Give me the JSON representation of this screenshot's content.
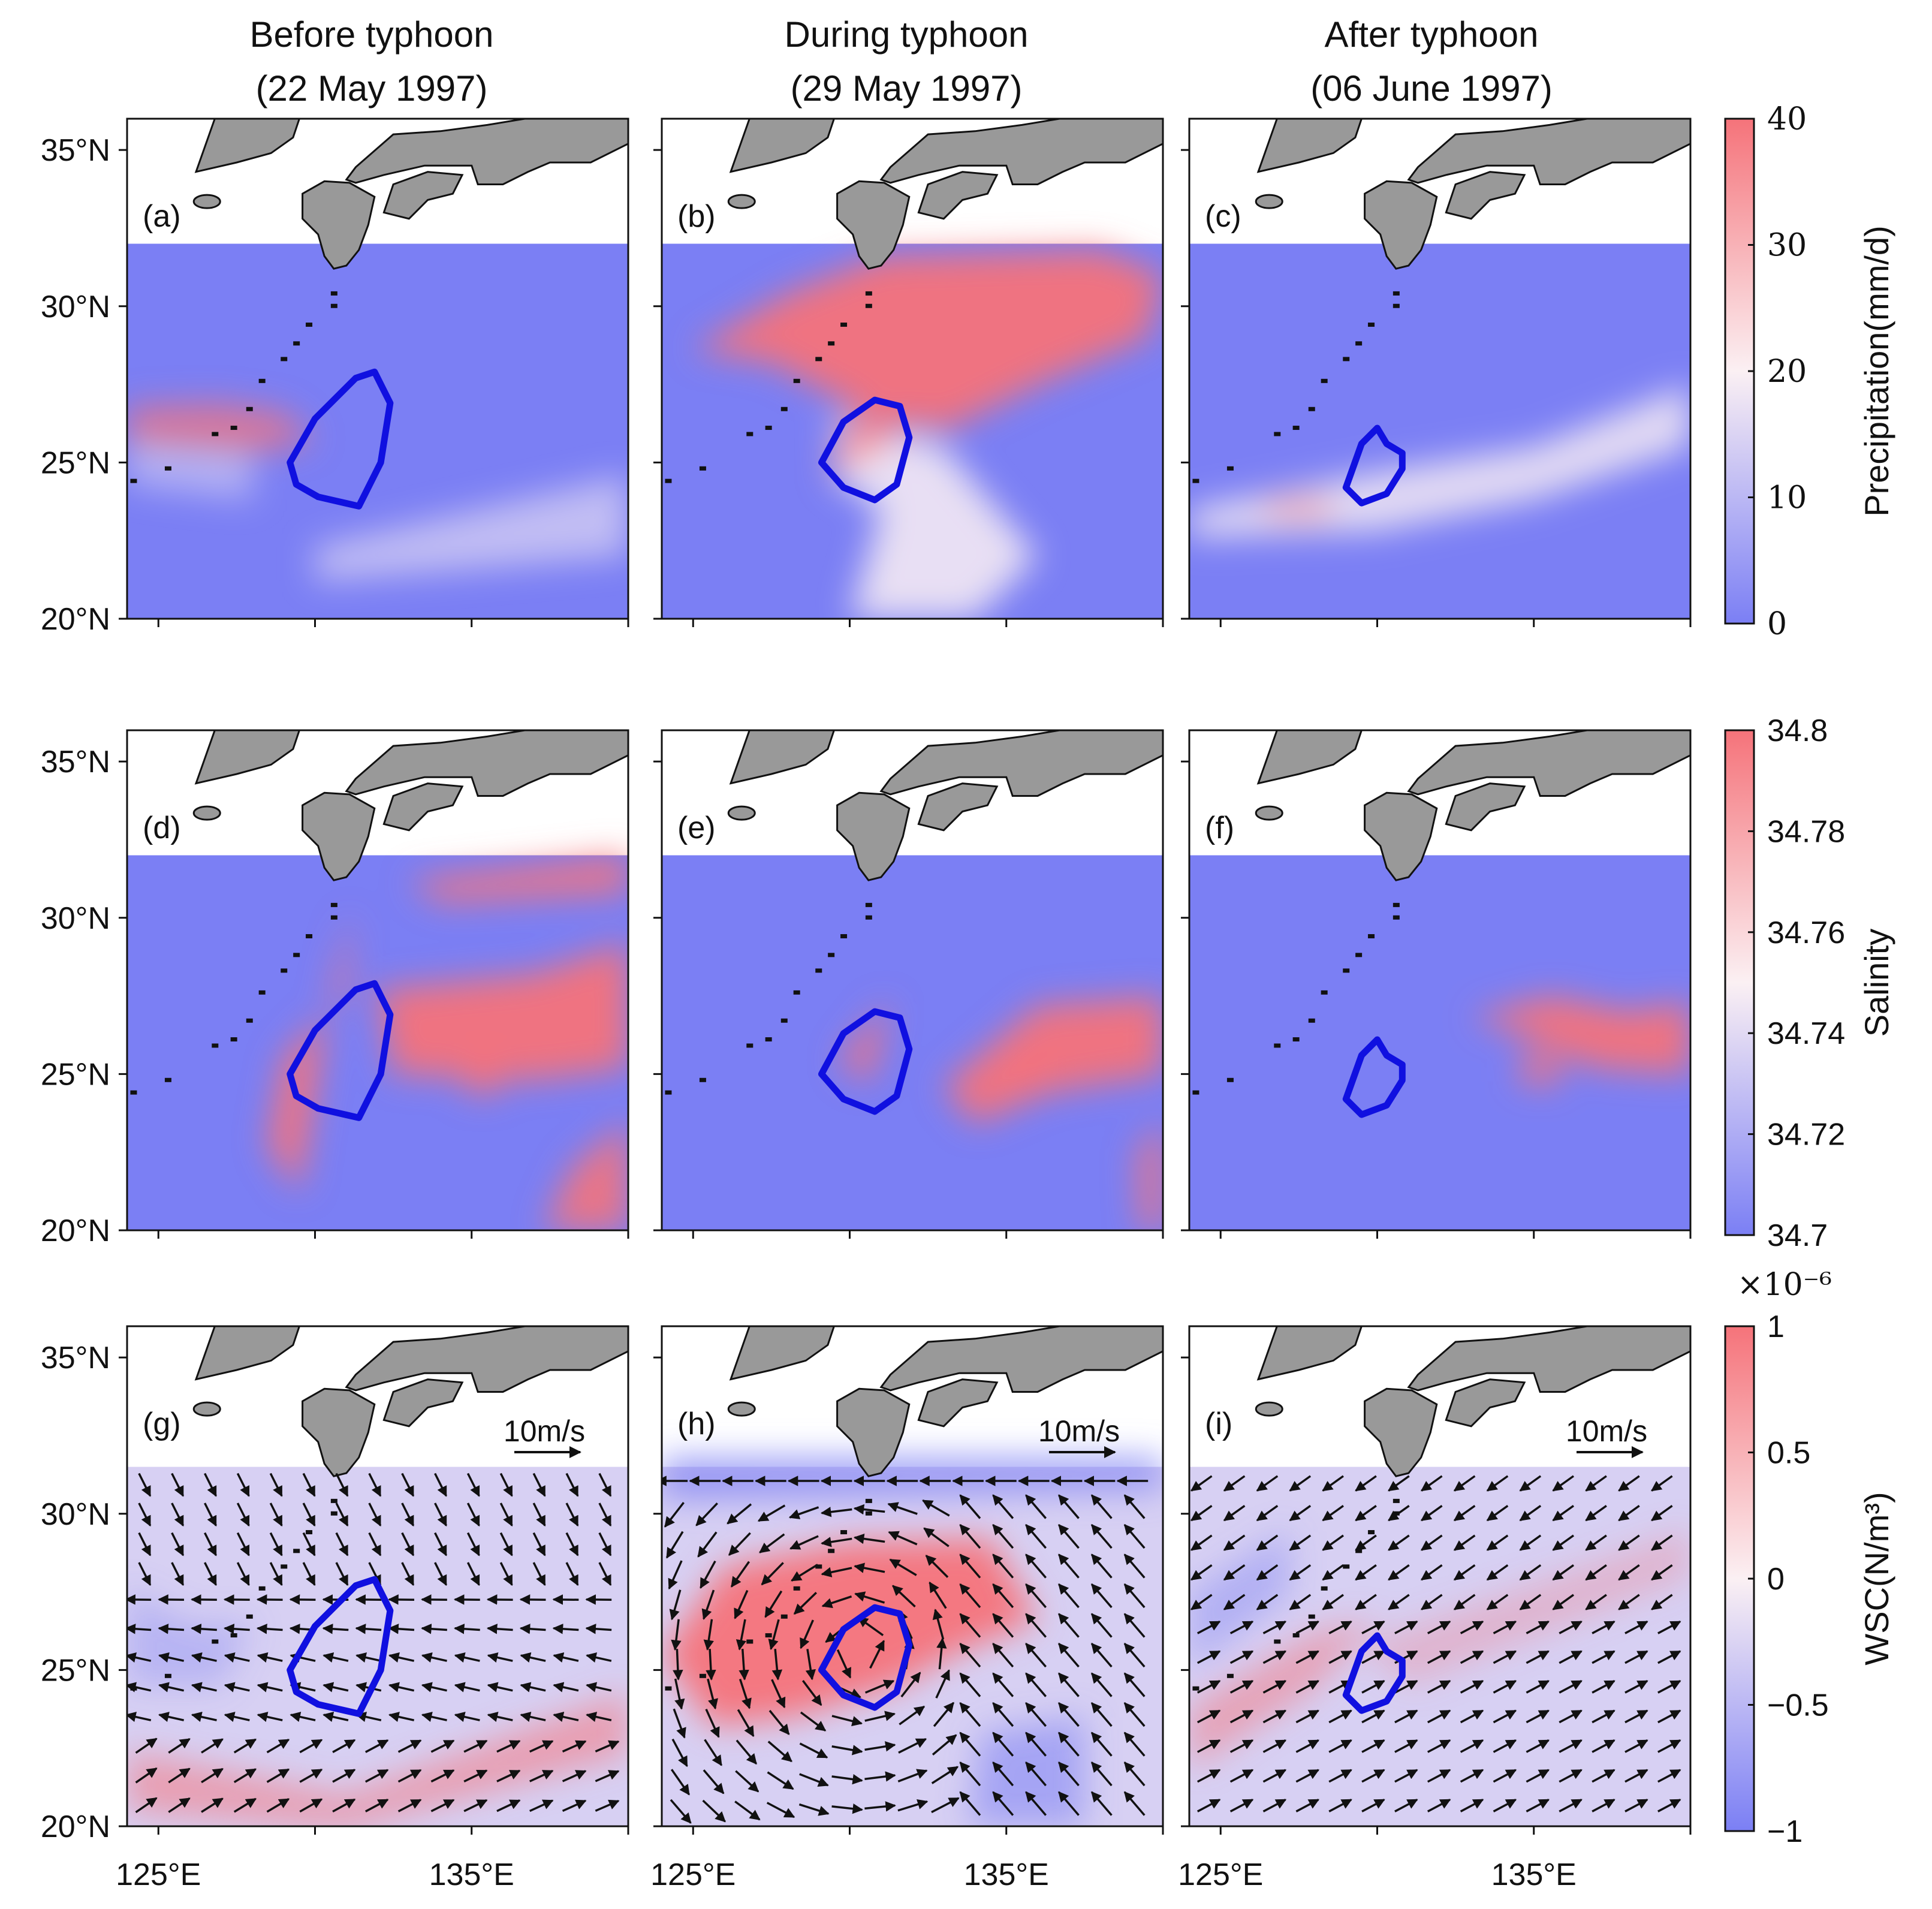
{
  "columns": [
    {
      "title": "Before typhoon",
      "date": "(22 May 1997)"
    },
    {
      "title": "During typhoon",
      "date": "(29 May 1997)"
    },
    {
      "title": "After typhoon",
      "date": "(06 June 1997)"
    }
  ],
  "panel_labels": [
    "(a)",
    "(b)",
    "(c)",
    "(d)",
    "(e)",
    "(f)",
    "(g)",
    "(h)",
    "(i)"
  ],
  "vector_key": "10m/s",
  "lat_ticks": [
    "35°N",
    "30°N",
    "25°N",
    "20°N"
  ],
  "lon_ticks": [
    "125°E",
    "135°E"
  ],
  "colors": {
    "low": "#7b7ff4",
    "mid": "#fbf0f3",
    "high": "#f5737a",
    "land": "#999999",
    "contour": "#1010e0"
  },
  "chart_data": [
    {
      "type": "heatmap",
      "variable": "Precipitation",
      "colorbar_label": "Precipitation(mm/d)",
      "colorbar_ticks": [
        "40",
        "30",
        "20",
        "10",
        "0"
      ],
      "range": [
        0,
        40
      ],
      "lat_range": [
        20,
        36
      ],
      "lon_range": [
        124,
        140
      ],
      "panels": [
        "(a)",
        "(b)",
        "(c)"
      ]
    },
    {
      "type": "heatmap",
      "variable": "Salinity",
      "colorbar_label": "Salinity",
      "colorbar_ticks": [
        "34.8",
        "34.78",
        "34.76",
        "34.74",
        "34.72",
        "34.7"
      ],
      "range": [
        34.7,
        34.8
      ],
      "lat_range": [
        20,
        36
      ],
      "lon_range": [
        124,
        140
      ],
      "panels": [
        "(d)",
        "(e)",
        "(f)"
      ]
    },
    {
      "type": "heatmap",
      "variable": "WSC",
      "colorbar_label": "WSC(N/m³)",
      "colorbar_exponent": "×10⁻⁶",
      "colorbar_ticks": [
        "1",
        "0.5",
        "0",
        "−0.5",
        "−1"
      ],
      "range": [
        -1,
        1
      ],
      "lat_range": [
        20,
        36
      ],
      "lon_range": [
        124,
        140
      ],
      "panels": [
        "(g)",
        "(h)",
        "(i)"
      ]
    }
  ]
}
